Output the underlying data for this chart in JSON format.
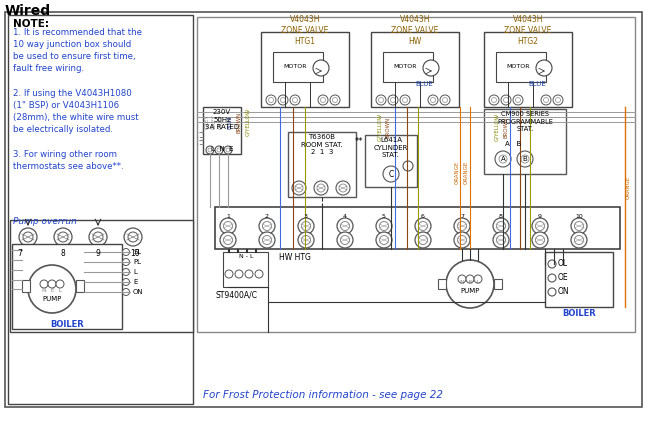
{
  "title": "Wired",
  "bg_color": "#ffffff",
  "note_title": "NOTE:",
  "note_lines": "1. It is recommended that the\n10 way junction box should\nbe used to ensure first time,\nfault free wiring.\n\n2. If using the V4043H1080\n(1\" BSP) or V4043H1106\n(28mm), the white wire must\nbe electrically isolated.\n\n3. For wiring other room\nthermostats see above**.",
  "pump_overrun_label": "Pump overrun",
  "footer_text": "For Frost Protection information - see page 22",
  "zone_labels": [
    "V4043H\nZONE VALVE\nHTG1",
    "V4043H\nZONE VALVE\nHW",
    "V4043H\nZONE VALVE\nHTG2"
  ],
  "wire_colors": {
    "grey": "#999999",
    "blue": "#4169E1",
    "brown": "#8B4513",
    "gyellow": "#999900",
    "orange": "#E07000",
    "black": "#222222",
    "dark": "#333333"
  },
  "text_colors": {
    "blue_label": "#2244AA",
    "brown_label": "#8B4513",
    "grey_label": "#888888",
    "gyellow_label": "#888800",
    "orange_label": "#CC6600",
    "black": "#222222"
  },
  "component_labels": {
    "power": "230V\n50Hz\n3A RATED",
    "lne": "L  N  E",
    "room_stat": "T6360B\nROOM STAT.\n2  1  3",
    "cylinder_stat": "L641A\nCYLINDER\nSTAT.",
    "cm900": "CM900 SERIES\nPROGRAMMABLE\nSTAT.",
    "st9400": "ST9400A/C",
    "hw_htg": "HW HTG",
    "boiler_label": "BOILER",
    "motor": "MOTOR",
    "pump_nel": "N E L\nPUMP",
    "boiler_right": "BOILER",
    "nl_label": "N - L"
  },
  "junction_terminals": [
    1,
    2,
    3,
    4,
    5,
    6,
    7,
    8,
    9,
    10
  ]
}
